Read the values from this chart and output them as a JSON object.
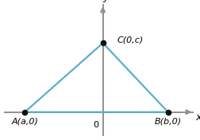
{
  "triangle_vertices": {
    "A": [
      -3.0,
      0
    ],
    "B": [
      2.5,
      0
    ],
    "C": [
      0,
      1.6
    ]
  },
  "labels": {
    "A": "A(a,0)",
    "B": "B(b,0)",
    "C": "C(0,c)"
  },
  "label_offsets": {
    "A": [
      0.0,
      -0.22
    ],
    "B": [
      0.0,
      -0.22
    ],
    "C": [
      0.55,
      0.08
    ]
  },
  "label_ha": {
    "A": "center",
    "B": "center",
    "C": "left"
  },
  "axis_label_x": "x",
  "axis_label_y": "y",
  "origin_label": "0",
  "xlim": [
    -3.8,
    3.5
  ],
  "ylim": [
    -0.55,
    2.5
  ],
  "triangle_color": "#5baec8",
  "triangle_linewidth": 1.6,
  "dot_color": "#111111",
  "dot_size": 4.5,
  "axis_color": "#909090",
  "axis_linewidth": 1.4,
  "font_size": 8.0,
  "axis_font_size": 9.5,
  "background_color": "#ffffff"
}
